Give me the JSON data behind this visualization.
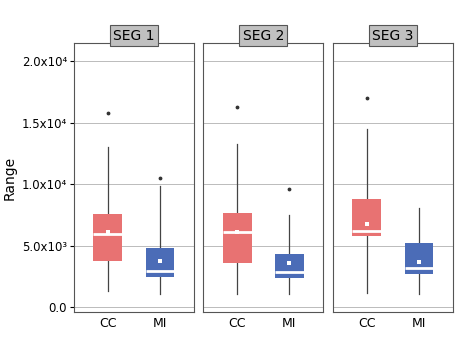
{
  "segments": [
    "SEG 1",
    "SEG 2",
    "SEG 3"
  ],
  "groups": [
    "CC",
    "MI"
  ],
  "cc_color": "#E87272",
  "mi_color": "#4B6CB7",
  "whisker_color": "#444444",
  "median_color": "#FFFFFF",
  "mean_marker_color": "#FFFFFF",
  "panel_header_color": "#C0C0C0",
  "grid_color": "#BBBBBB",
  "background_color": "#FFFFFF",
  "ylabel": "Range",
  "yticks": [
    0,
    5000,
    10000,
    15000,
    20000
  ],
  "ytick_labels": [
    "0.0",
    "5.0x10³",
    "1.0x10⁴",
    "1.5x10⁴",
    "2.0x10⁴"
  ],
  "ylim": [
    -400,
    21500
  ],
  "boxes": {
    "SEG1_CC": {
      "q1": 3800,
      "median": 6000,
      "q3": 7600,
      "whislo": 1300,
      "whishi": 13000,
      "mean": 6100,
      "fliers": [
        15800
      ]
    },
    "SEG1_MI": {
      "q1": 2500,
      "median": 3000,
      "q3": 4800,
      "whislo": 1100,
      "whishi": 9900,
      "mean": 3800,
      "fliers": [
        10500
      ]
    },
    "SEG2_CC": {
      "q1": 3600,
      "median": 6100,
      "q3": 7700,
      "whislo": 1100,
      "whishi": 13300,
      "mean": 6100,
      "fliers": [
        16300
      ]
    },
    "SEG2_MI": {
      "q1": 2400,
      "median": 2900,
      "q3": 4300,
      "whislo": 1100,
      "whishi": 7500,
      "mean": 3600,
      "fliers": [
        9600
      ]
    },
    "SEG3_CC": {
      "q1": 5800,
      "median": 6200,
      "q3": 8800,
      "whislo": 1200,
      "whishi": 14500,
      "mean": 6800,
      "fliers": [
        17000
      ]
    },
    "SEG3_MI": {
      "q1": 2700,
      "median": 3200,
      "q3": 5200,
      "whislo": 1100,
      "whishi": 8100,
      "mean": 3700,
      "fliers": []
    }
  }
}
